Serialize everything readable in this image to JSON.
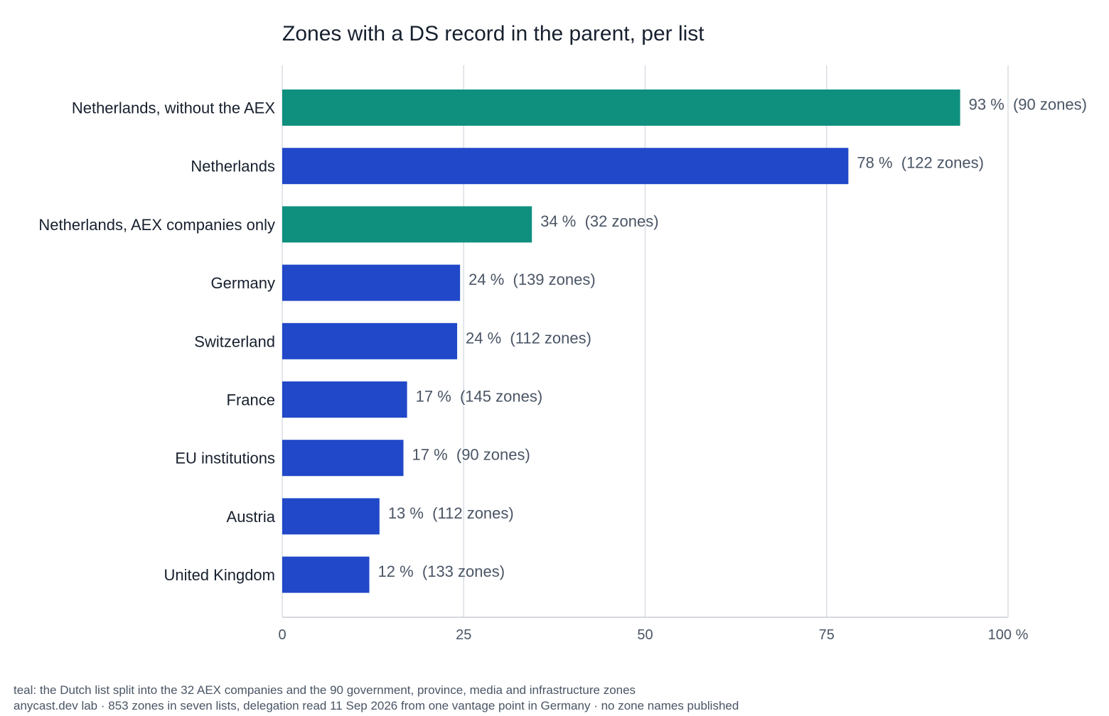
{
  "chart_data": {
    "type": "bar",
    "orientation": "horizontal",
    "title": "Zones with a DS record in the parent, per list",
    "xlabel": "",
    "ylabel": "",
    "xlim": [
      0,
      100
    ],
    "x_ticks": [
      "0",
      "25",
      "50",
      "75",
      "100 %"
    ],
    "x_tick_values": [
      0,
      25,
      50,
      75,
      100
    ],
    "grid": "vertical",
    "legend": "none",
    "colors": {
      "teal": "#0f8f7e",
      "blue": "#2048c8"
    },
    "bars": [
      {
        "category": "Netherlands, without the AEX",
        "value": 93.4,
        "label": "93 %  (90 zones)",
        "color": "teal"
      },
      {
        "category": "Netherlands",
        "value": 78,
        "label": "78 %  (122 zones)",
        "color": "blue"
      },
      {
        "category": "Netherlands, AEX companies only",
        "value": 34.4,
        "label": "34 %  (32 zones)",
        "color": "teal"
      },
      {
        "category": "Germany",
        "value": 24.5,
        "label": "24 %  (139 zones)",
        "color": "blue"
      },
      {
        "category": "Switzerland",
        "value": 24.1,
        "label": "24 %  (112 zones)",
        "color": "blue"
      },
      {
        "category": "France",
        "value": 17.2,
        "label": "17 %  (145 zones)",
        "color": "blue"
      },
      {
        "category": "EU institutions",
        "value": 16.7,
        "label": "17 %  (90 zones)",
        "color": "blue"
      },
      {
        "category": "Austria",
        "value": 13.4,
        "label": "13 %  (112 zones)",
        "color": "blue"
      },
      {
        "category": "United Kingdom",
        "value": 12,
        "label": "12 %  (133 zones)",
        "color": "blue"
      }
    ]
  },
  "footnotes": [
    "teal: the Dutch list split into the 32 AEX companies and the 90 government, province, media and infrastructure zones",
    "anycast.dev lab · 853 zones in seven lists, delegation read 11 Sep 2026 from one vantage point in Germany · no zone names published"
  ]
}
